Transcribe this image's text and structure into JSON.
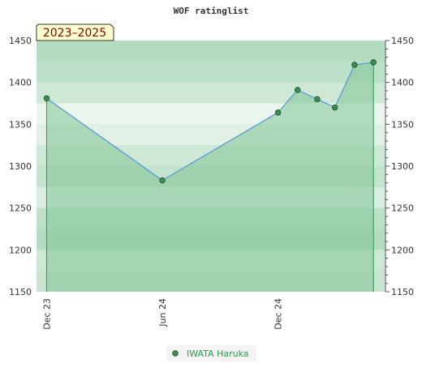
{
  "chart_data": {
    "type": "area",
    "title": "WOF ratinglist",
    "period_label": "2023–2025",
    "ylim": [
      1150,
      1450
    ],
    "yticks": [
      1150,
      1200,
      1250,
      1300,
      1350,
      1400,
      1450
    ],
    "x_tick_labels": [
      {
        "date": "2023-12-01",
        "label": "Dec 23"
      },
      {
        "date": "2024-06-01",
        "label": "Jun 24"
      },
      {
        "date": "2024-12-01",
        "label": "Dec 24"
      }
    ],
    "xlim": [
      "2023-11-15",
      "2025-05-20"
    ],
    "series": [
      {
        "name": "IWATA Haruka",
        "points": [
          {
            "x": "2023-12-01",
            "y": 1381
          },
          {
            "x": "2024-06-01",
            "y": 1283
          },
          {
            "x": "2024-12-01",
            "y": 1364
          },
          {
            "x": "2025-01-01",
            "y": 1391
          },
          {
            "x": "2025-02-01",
            "y": 1380
          },
          {
            "x": "2025-03-01",
            "y": 1370
          },
          {
            "x": "2025-04-01",
            "y": 1421
          },
          {
            "x": "2025-05-01",
            "y": 1424
          }
        ]
      }
    ],
    "grid": true,
    "legend_position": "bottom-center",
    "colors": {
      "line": "#5b9bd5",
      "marker": "#3b8f4e",
      "area": "#7fc496",
      "legend_text": "#2e9b4a"
    }
  }
}
